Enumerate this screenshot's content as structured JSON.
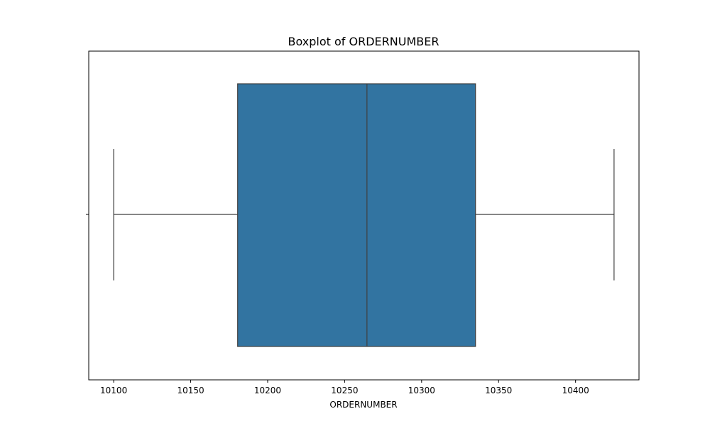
{
  "chart_data": {
    "type": "boxplot",
    "title": "Boxplot of ORDERNUMBER",
    "xlabel": "ORDERNUMBER",
    "ylabel": "",
    "orientation": "horizontal",
    "xlim": [
      10083.8,
      10441.2
    ],
    "xticks": [
      10100,
      10150,
      10200,
      10250,
      10300,
      10350,
      10400
    ],
    "xtick_labels": [
      "10100",
      "10150",
      "10200",
      "10250",
      "10300",
      "10350",
      "10400"
    ],
    "box": {
      "whisker_low": 10100,
      "q1": 10180.5,
      "median": 10264.5,
      "q3": 10335,
      "whisker_high": 10425
    },
    "grid": false,
    "legend": false,
    "colors": {
      "box_fill": "#3274a1",
      "line": "#3f3f3f",
      "frame": "#000000"
    }
  }
}
